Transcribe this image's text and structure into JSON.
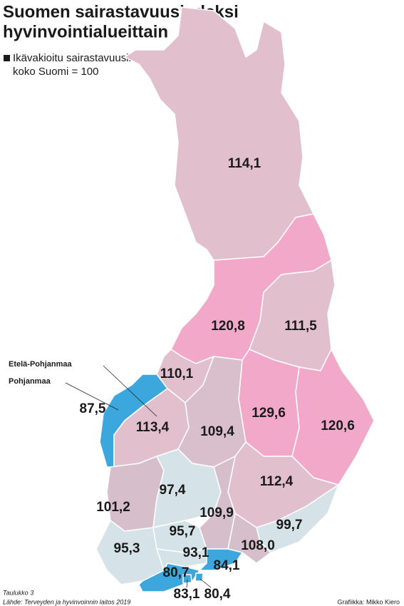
{
  "title_lines": [
    "Suomen sairastavuusindeksi",
    "hyvinvointialueittain"
  ],
  "legend_lines": [
    "Ikävakioitu sairastavuusindeksi,",
    "koko Suomi = 100"
  ],
  "annotations": [
    "Etelä-Pohjanmaa",
    "Pohjanmaa"
  ],
  "footer": {
    "table": "Taulukko 3",
    "source": "Lähde: Terveyden ja hyvinvoinnin laitos 2019",
    "credit": "Grafiikka: Mikko Kiero"
  },
  "regions": [
    {
      "value": 114.1,
      "value_label": "114,1",
      "color": "#e2bfcd"
    },
    {
      "value": 120.8,
      "value_label": "120,8",
      "color": "#f2a9c9"
    },
    {
      "value": 111.5,
      "value_label": "111,5",
      "color": "#e2bfcd"
    },
    {
      "value": 110.1,
      "value_label": "110,1",
      "color": "#e2bfcd"
    },
    {
      "value": 87.5,
      "value_label": "87,5",
      "color": "#3ba7dd"
    },
    {
      "value": 113.4,
      "value_label": "113,4",
      "color": "#e2bfcd"
    },
    {
      "value": 109.4,
      "value_label": "109,4",
      "color": "#d9bfcb"
    },
    {
      "value": 129.6,
      "value_label": "129,6",
      "color": "#f2a9c9"
    },
    {
      "value": 120.6,
      "value_label": "120,6",
      "color": "#f2a9c9"
    },
    {
      "value": 112.4,
      "value_label": "112,4",
      "color": "#e2bfcd"
    },
    {
      "value": 101.2,
      "value_label": "101,2",
      "color": "#d6bfca"
    },
    {
      "value": 97.4,
      "value_label": "97,4",
      "color": "#d5e3e8"
    },
    {
      "value": 109.9,
      "value_label": "109,9",
      "color": "#d6bfca"
    },
    {
      "value": 99.7,
      "value_label": "99,7",
      "color": "#d5e3e8"
    },
    {
      "value": 108.0,
      "value_label": "108,0",
      "color": "#d6bfca"
    },
    {
      "value": 95.7,
      "value_label": "95,7",
      "color": "#d5e3e8"
    },
    {
      "value": 95.3,
      "value_label": "95,3",
      "color": "#d5e3e8"
    },
    {
      "value": 93.1,
      "value_label": "93,1",
      "color": "#d5e3e8"
    },
    {
      "value": 80.7,
      "value_label": "80,7",
      "color": "#3ba7dd"
    },
    {
      "value": 84.1,
      "value_label": "84,1",
      "color": "#3ba7dd"
    },
    {
      "value": 83.1,
      "value_label": "83,1",
      "color": "#3ba7dd"
    },
    {
      "value": 80.4,
      "value_label": "80,4",
      "color": "#3ba7dd"
    }
  ]
}
